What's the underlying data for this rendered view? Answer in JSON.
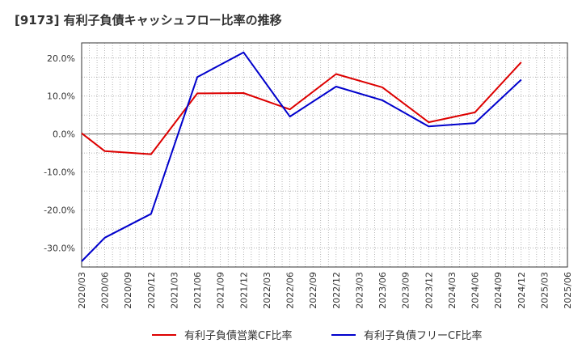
{
  "chart_data": {
    "type": "line",
    "title": "[9173]  有利子負債キャッシュフロー比率の推移",
    "xlabel": "",
    "ylabel": "",
    "x": [
      "2020/03",
      "2020/06",
      "2020/09",
      "2020/12",
      "2021/03",
      "2021/06",
      "2021/09",
      "2021/12",
      "2022/03",
      "2022/06",
      "2022/09",
      "2022/12",
      "2023/03",
      "2023/06",
      "2023/09",
      "2023/12",
      "2024/03",
      "2024/06",
      "2024/09",
      "2024/12",
      "2025/03",
      "2025/06"
    ],
    "yticks": [
      20,
      10,
      0,
      -10,
      -20,
      -30
    ],
    "ytick_labels": [
      "20.0%",
      "10.0%",
      "0.0%",
      "-10.0%",
      "-20.0%",
      "-30.0%"
    ],
    "ylim": [
      -35,
      24
    ],
    "grid": true,
    "legend_position": "bottom",
    "series": [
      {
        "name": "有利子負債営業CF比率",
        "color": "#dd0000",
        "values": [
          0.2,
          -4.5,
          null,
          -5.3,
          null,
          10.7,
          null,
          10.8,
          null,
          6.5,
          null,
          15.8,
          null,
          12.3,
          null,
          3.1,
          null,
          5.7,
          null,
          18.9,
          null,
          null
        ]
      },
      {
        "name": "有利子負債フリーCF比率",
        "color": "#0000cc",
        "values": [
          -33.5,
          -27.3,
          null,
          -21.0,
          null,
          15.0,
          null,
          21.5,
          null,
          4.6,
          null,
          12.5,
          null,
          8.9,
          null,
          2.0,
          null,
          2.9,
          null,
          14.3,
          null,
          null
        ]
      }
    ]
  }
}
